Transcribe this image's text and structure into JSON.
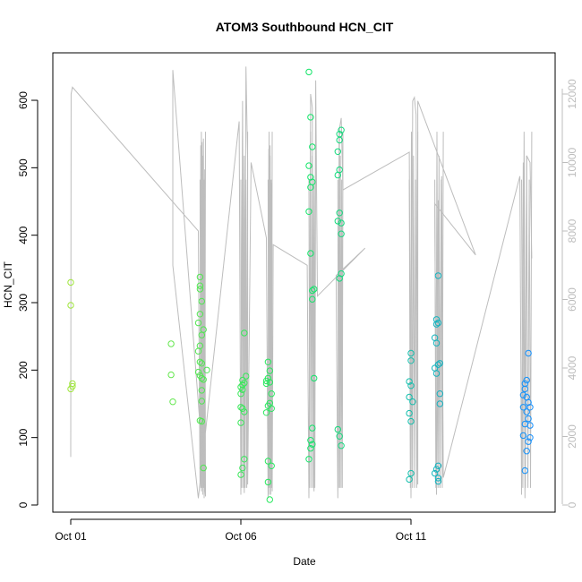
{
  "chart_data": {
    "type": "scatter",
    "title": "ATOM3 Southbound HCN_CIT",
    "xlabel": "Date",
    "ylabel": "HCN_CIT",
    "x_ticks": [
      "Oct 01",
      "Oct 06",
      "Oct 11"
    ],
    "y_ticks": [
      "0",
      "100",
      "200",
      "300",
      "400",
      "500",
      "600"
    ],
    "y_right_ticks": [
      "0",
      "2000",
      "4000",
      "6000",
      "8000",
      "10000",
      "12000"
    ],
    "grid": false,
    "legend": "none",
    "colors": {
      "altitude_line": "#bdbdbd",
      "points_green": "#2ee82e",
      "points_cyan": "#22d8e0",
      "points_blue": "#1e90ff"
    },
    "points": [
      {
        "d": 0.0,
        "v": 330
      },
      {
        "d": 0.0,
        "v": 296
      },
      {
        "d": 0.05,
        "v": 180
      },
      {
        "d": 0.05,
        "v": 176
      },
      {
        "d": 0.0,
        "v": 172
      },
      {
        "d": 2.95,
        "v": 239
      },
      {
        "d": 2.95,
        "v": 193
      },
      {
        "d": 3.0,
        "v": 153
      },
      {
        "d": 3.75,
        "v": 270
      },
      {
        "d": 3.8,
        "v": 338
      },
      {
        "d": 3.8,
        "v": 325
      },
      {
        "d": 3.8,
        "v": 320
      },
      {
        "d": 3.85,
        "v": 302
      },
      {
        "d": 3.8,
        "v": 283
      },
      {
        "d": 3.85,
        "v": 252
      },
      {
        "d": 3.8,
        "v": 236
      },
      {
        "d": 3.75,
        "v": 228
      },
      {
        "d": 3.8,
        "v": 212
      },
      {
        "d": 3.85,
        "v": 210
      },
      {
        "d": 3.75,
        "v": 197
      },
      {
        "d": 3.8,
        "v": 192
      },
      {
        "d": 3.85,
        "v": 188
      },
      {
        "d": 3.9,
        "v": 186
      },
      {
        "d": 3.85,
        "v": 170
      },
      {
        "d": 3.85,
        "v": 154
      },
      {
        "d": 3.8,
        "v": 125
      },
      {
        "d": 3.85,
        "v": 124
      },
      {
        "d": 3.9,
        "v": 55
      },
      {
        "d": 4.0,
        "v": 200
      },
      {
        "d": 3.9,
        "v": 260
      },
      {
        "d": 5.1,
        "v": 255
      },
      {
        "d": 5.15,
        "v": 191
      },
      {
        "d": 5.05,
        "v": 185
      },
      {
        "d": 5.1,
        "v": 181
      },
      {
        "d": 5.05,
        "v": 178
      },
      {
        "d": 5.0,
        "v": 175
      },
      {
        "d": 5.05,
        "v": 171
      },
      {
        "d": 5.0,
        "v": 165
      },
      {
        "d": 5.0,
        "v": 145
      },
      {
        "d": 5.05,
        "v": 143
      },
      {
        "d": 5.1,
        "v": 138
      },
      {
        "d": 5.0,
        "v": 122
      },
      {
        "d": 5.1,
        "v": 68
      },
      {
        "d": 5.05,
        "v": 55
      },
      {
        "d": 5.0,
        "v": 45
      },
      {
        "d": 5.8,
        "v": 212
      },
      {
        "d": 5.85,
        "v": 199
      },
      {
        "d": 5.75,
        "v": 184
      },
      {
        "d": 5.8,
        "v": 188
      },
      {
        "d": 5.85,
        "v": 182
      },
      {
        "d": 5.75,
        "v": 180
      },
      {
        "d": 5.9,
        "v": 165
      },
      {
        "d": 5.85,
        "v": 151
      },
      {
        "d": 5.8,
        "v": 147
      },
      {
        "d": 5.9,
        "v": 143
      },
      {
        "d": 5.75,
        "v": 137
      },
      {
        "d": 5.8,
        "v": 65
      },
      {
        "d": 5.9,
        "v": 58
      },
      {
        "d": 5.8,
        "v": 34
      },
      {
        "d": 5.85,
        "v": 8
      },
      {
        "d": 7.0,
        "v": 642
      },
      {
        "d": 7.05,
        "v": 575
      },
      {
        "d": 7.1,
        "v": 531
      },
      {
        "d": 7.0,
        "v": 503
      },
      {
        "d": 7.05,
        "v": 486
      },
      {
        "d": 7.1,
        "v": 479
      },
      {
        "d": 7.05,
        "v": 471
      },
      {
        "d": 7.0,
        "v": 435
      },
      {
        "d": 7.05,
        "v": 373
      },
      {
        "d": 7.15,
        "v": 320
      },
      {
        "d": 7.1,
        "v": 318
      },
      {
        "d": 7.1,
        "v": 305
      },
      {
        "d": 7.15,
        "v": 188
      },
      {
        "d": 7.1,
        "v": 114
      },
      {
        "d": 7.05,
        "v": 96
      },
      {
        "d": 7.1,
        "v": 90
      },
      {
        "d": 7.05,
        "v": 84
      },
      {
        "d": 7.0,
        "v": 68
      },
      {
        "d": 7.95,
        "v": 556
      },
      {
        "d": 7.9,
        "v": 550
      },
      {
        "d": 7.9,
        "v": 541
      },
      {
        "d": 7.85,
        "v": 524
      },
      {
        "d": 7.9,
        "v": 497
      },
      {
        "d": 7.85,
        "v": 489
      },
      {
        "d": 7.9,
        "v": 433
      },
      {
        "d": 7.85,
        "v": 421
      },
      {
        "d": 7.95,
        "v": 418
      },
      {
        "d": 7.95,
        "v": 402
      },
      {
        "d": 7.95,
        "v": 343
      },
      {
        "d": 7.9,
        "v": 336
      },
      {
        "d": 7.85,
        "v": 112
      },
      {
        "d": 7.9,
        "v": 102
      },
      {
        "d": 7.95,
        "v": 88
      },
      {
        "d": 10.0,
        "v": 225
      },
      {
        "d": 10.0,
        "v": 214
      },
      {
        "d": 9.95,
        "v": 183
      },
      {
        "d": 10.0,
        "v": 177
      },
      {
        "d": 9.95,
        "v": 160
      },
      {
        "d": 10.05,
        "v": 153
      },
      {
        "d": 9.95,
        "v": 136
      },
      {
        "d": 10.0,
        "v": 124
      },
      {
        "d": 10.0,
        "v": 47
      },
      {
        "d": 9.95,
        "v": 38
      },
      {
        "d": 10.8,
        "v": 340
      },
      {
        "d": 10.75,
        "v": 275
      },
      {
        "d": 10.8,
        "v": 270
      },
      {
        "d": 10.75,
        "v": 268
      },
      {
        "d": 10.7,
        "v": 248
      },
      {
        "d": 10.75,
        "v": 240
      },
      {
        "d": 10.85,
        "v": 210
      },
      {
        "d": 10.8,
        "v": 208
      },
      {
        "d": 10.7,
        "v": 203
      },
      {
        "d": 10.75,
        "v": 195
      },
      {
        "d": 10.85,
        "v": 165
      },
      {
        "d": 10.85,
        "v": 150
      },
      {
        "d": 10.8,
        "v": 58
      },
      {
        "d": 10.75,
        "v": 53
      },
      {
        "d": 10.7,
        "v": 47
      },
      {
        "d": 10.8,
        "v": 40
      },
      {
        "d": 10.8,
        "v": 35
      },
      {
        "d": 13.45,
        "v": 225
      },
      {
        "d": 13.4,
        "v": 185
      },
      {
        "d": 13.35,
        "v": 180
      },
      {
        "d": 13.35,
        "v": 172
      },
      {
        "d": 13.3,
        "v": 163
      },
      {
        "d": 13.4,
        "v": 160
      },
      {
        "d": 13.45,
        "v": 152
      },
      {
        "d": 13.3,
        "v": 145
      },
      {
        "d": 13.5,
        "v": 145
      },
      {
        "d": 13.4,
        "v": 138
      },
      {
        "d": 13.45,
        "v": 128
      },
      {
        "d": 13.35,
        "v": 120
      },
      {
        "d": 13.5,
        "v": 118
      },
      {
        "d": 13.3,
        "v": 103
      },
      {
        "d": 13.5,
        "v": 100
      },
      {
        "d": 13.45,
        "v": 94
      },
      {
        "d": 13.4,
        "v": 80
      },
      {
        "d": 13.35,
        "v": 51
      }
    ],
    "altitude_profile": [
      [
        0.0,
        1400
      ],
      [
        0.01,
        12000
      ],
      [
        0.05,
        12200
      ],
      [
        3.75,
        8000
      ],
      [
        3.8,
        600
      ],
      [
        3.82,
        10500
      ],
      [
        3.84,
        400
      ],
      [
        3.86,
        10600
      ],
      [
        3.88,
        300
      ],
      [
        3.9,
        10700
      ],
      [
        3.92,
        200
      ],
      [
        3.94,
        9800
      ],
      [
        3.96,
        250
      ],
      [
        3.0,
        12700
      ],
      [
        3.0,
        7000
      ],
      [
        3.75,
        200
      ],
      [
        4.95,
        11200
      ],
      [
        5.0,
        300
      ],
      [
        5.05,
        11800
      ],
      [
        5.1,
        350
      ],
      [
        5.15,
        12800
      ],
      [
        5.2,
        10000
      ],
      [
        5.2,
        600
      ],
      [
        5.3,
        10000
      ],
      [
        5.75,
        7800
      ],
      [
        5.8,
        200
      ],
      [
        5.82,
        10400
      ],
      [
        5.84,
        300
      ],
      [
        5.86,
        10500
      ],
      [
        5.88,
        300
      ],
      [
        5.9,
        9400
      ],
      [
        5.92,
        400
      ],
      [
        5.95,
        7600
      ],
      [
        6.95,
        7000
      ],
      [
        7.0,
        200
      ],
      [
        7.05,
        12000
      ],
      [
        7.1,
        11600
      ],
      [
        7.15,
        400
      ],
      [
        7.2,
        12400
      ],
      [
        7.25,
        6100
      ],
      [
        8.65,
        7500
      ],
      [
        7.8,
        6700
      ],
      [
        7.85,
        200
      ],
      [
        7.9,
        11000
      ],
      [
        7.95,
        11300
      ],
      [
        8.0,
        9200
      ],
      [
        9.95,
        10300
      ],
      [
        10.0,
        200
      ],
      [
        10.05,
        11800
      ],
      [
        10.1,
        11900
      ],
      [
        10.15,
        11400
      ],
      [
        10.2,
        600
      ],
      [
        10.2,
        11800
      ],
      [
        11.9,
        7300
      ],
      [
        10.7,
        8800
      ],
      [
        10.75,
        300
      ],
      [
        10.8,
        8900
      ],
      [
        10.85,
        500
      ],
      [
        10.9,
        9600
      ],
      [
        10.95,
        800
      ],
      [
        13.2,
        9600
      ],
      [
        13.25,
        300
      ],
      [
        13.3,
        10000
      ],
      [
        13.35,
        200
      ],
      [
        13.4,
        10200
      ],
      [
        13.5,
        10000
      ],
      [
        13.55,
        7200
      ]
    ]
  }
}
